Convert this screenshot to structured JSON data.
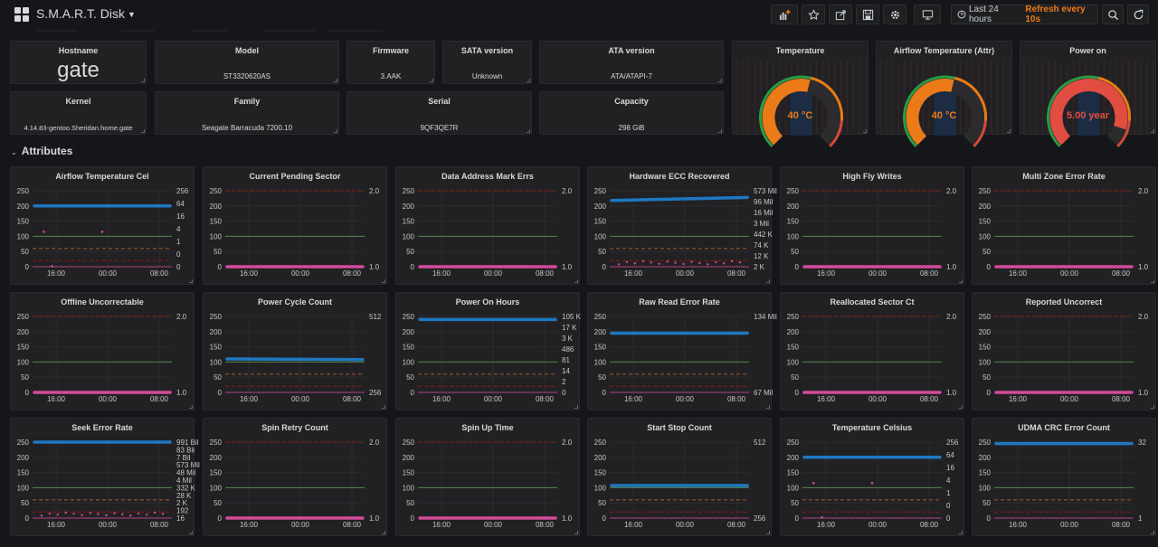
{
  "header": {
    "title": "S.M.A.R.T. Disk",
    "time_range": "Last 24 hours",
    "refresh": "Refresh every 10s",
    "icons": [
      "add-panel-icon",
      "star-icon",
      "share-icon",
      "save-icon",
      "settings-icon",
      "tv-icon",
      "clock-icon",
      "zoom-out-icon",
      "refresh-icon"
    ]
  },
  "info": {
    "hostname": {
      "title": "Hostname",
      "value": "gate"
    },
    "model": {
      "title": "Model",
      "value": "ST3320620AS"
    },
    "firmware": {
      "title": "Firmware",
      "value": "3.AAK"
    },
    "sata": {
      "title": "SATA version",
      "value": "Unknown"
    },
    "ata": {
      "title": "ATA version",
      "value": "ATA/ATAPI-7"
    },
    "kernel": {
      "title": "Kernel",
      "value": "4.14.83-gentoo.Sheridan.home.gate"
    },
    "family": {
      "title": "Family",
      "value": "Seagate Barracuda 7200.10"
    },
    "serial": {
      "title": "Serial",
      "value": "9QF3QE7R"
    },
    "capacity": {
      "title": "Capacity",
      "value": "298 GiB"
    }
  },
  "gauges": [
    {
      "title": "Temperature",
      "value": "40 °C",
      "fraction": 0.55,
      "color": "#eb7b18"
    },
    {
      "title": "Airflow Temperature (Attr)",
      "value": "40 °C",
      "fraction": 0.55,
      "color": "#eb7b18"
    },
    {
      "title": "Power on",
      "value": "5.00 year",
      "fraction": 0.9,
      "color": "#e24d42"
    }
  ],
  "section": {
    "title": "Attributes"
  },
  "colors": {
    "blue": "#1f78c1",
    "pink": "#d44a9a",
    "green": "#629e51",
    "orange": "#e0752d",
    "red": "#bf1b00"
  },
  "x_ticks": [
    "16:00",
    "00:00",
    "08:00"
  ],
  "left_ticks": [
    "250",
    "200",
    "150",
    "100",
    "50",
    "0"
  ],
  "charts": [
    {
      "title": "Airflow Temperature Cel",
      "right": [
        "256",
        "64",
        "16",
        "4",
        "1",
        "0",
        "0"
      ],
      "line": {
        "color": "blue",
        "v": 200
      },
      "pink": "dots-up"
    },
    {
      "title": "Current Pending Sector",
      "right": [
        "2.0",
        "1.0"
      ],
      "line": {
        "color": "pink",
        "v": 0
      },
      "pink": "none"
    },
    {
      "title": "Data Address Mark Errs",
      "right": [
        "2.0",
        "1.0"
      ],
      "line": {
        "color": "pink",
        "v": 0
      },
      "pink": "none"
    },
    {
      "title": "Hardware ECC Recovered",
      "right": [
        "573 Mil",
        "96 Mil",
        "16 Mil",
        "3 Mil",
        "442 K",
        "74 K",
        "12 K",
        "2 K"
      ],
      "line": {
        "color": "blue",
        "v": 218,
        "v2": 228
      },
      "pink": "dots"
    },
    {
      "title": "High Fly Writes",
      "right": [
        "2.0",
        "1.0"
      ],
      "line": {
        "color": "pink",
        "v": 0
      },
      "pink": "none"
    },
    {
      "title": "Multi Zone Error Rate",
      "right": [
        "2.0",
        "1.0"
      ],
      "line": {
        "color": "pink",
        "v": 0
      },
      "pink": "none"
    },
    {
      "title": "Offline Uncorrectable",
      "right": [
        "2.0",
        "1.0"
      ],
      "line": {
        "color": "pink",
        "v": 0
      },
      "pink": "none"
    },
    {
      "title": "Power Cycle Count",
      "right": [
        "512",
        "256"
      ],
      "line": {
        "color": "blue",
        "v": 110,
        "v2": 108
      },
      "pink": "none"
    },
    {
      "title": "Power On Hours",
      "right": [
        "105 K",
        "17 K",
        "3 K",
        "486",
        "81",
        "14",
        "2",
        "0"
      ],
      "line": {
        "color": "blue",
        "v": 240
      },
      "pink": "none"
    },
    {
      "title": "Raw Read Error Rate",
      "right": [
        "134 Mil",
        "67 Mil"
      ],
      "line": {
        "color": "blue",
        "v": 195
      },
      "pink": "none"
    },
    {
      "title": "Reallocated Sector Ct",
      "right": [
        "2.0",
        "1.0"
      ],
      "line": {
        "color": "pink",
        "v": 0
      },
      "pink": "none"
    },
    {
      "title": "Reported Uncorrect",
      "right": [
        "2.0",
        "1.0"
      ],
      "line": {
        "color": "pink",
        "v": 0
      },
      "pink": "none"
    },
    {
      "title": "Seek Error Rate",
      "right": [
        "991 Bil",
        "83 Bil",
        "7 Bil",
        "573 Mil",
        "48 Mil",
        "4 Mil",
        "332 K",
        "28 K",
        "2 K",
        "192",
        "16"
      ],
      "line": {
        "color": "blue",
        "v": 250
      },
      "pink": "dots"
    },
    {
      "title": "Spin Retry Count",
      "right": [
        "2.0",
        "1.0"
      ],
      "line": {
        "color": "pink",
        "v": 0
      },
      "pink": "none"
    },
    {
      "title": "Spin Up Time",
      "right": [
        "2.0",
        "1.0"
      ],
      "line": {
        "color": "pink",
        "v": 0
      },
      "pink": "none"
    },
    {
      "title": "Start Stop Count",
      "right": [
        "512",
        "256"
      ],
      "line": {
        "color": "blue",
        "v": 107
      },
      "pink": "none"
    },
    {
      "title": "Temperature Celsius",
      "right": [
        "256",
        "64",
        "16",
        "4",
        "1",
        "0",
        "0"
      ],
      "line": {
        "color": "blue",
        "v": 200
      },
      "pink": "dots-up"
    },
    {
      "title": "UDMA CRC Error Count",
      "right": [
        "32",
        "1"
      ],
      "line": {
        "color": "blue",
        "v": 245
      },
      "pink": "none"
    }
  ]
}
